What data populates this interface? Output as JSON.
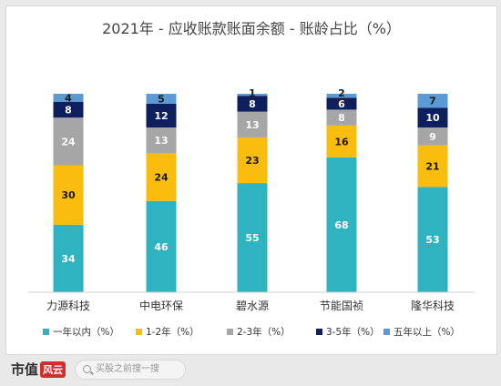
{
  "chart_data": {
    "type": "bar",
    "stacked": true,
    "title": "2021年 - 应收账款账面余额 - 账龄占比（%）",
    "categories": [
      "力源科技",
      "中电环保",
      "碧水源",
      "节能国祯",
      "隆华科技"
    ],
    "series": [
      {
        "name": "一年以内（%）",
        "color": "#2fb3c0",
        "values": [
          34,
          46,
          55,
          68,
          53
        ]
      },
      {
        "name": "1-2年（%）",
        "color": "#fbbd0d",
        "values": [
          30,
          24,
          23,
          16,
          21
        ]
      },
      {
        "name": "2-3年（%）",
        "color": "#a6a6a6",
        "values": [
          24,
          13,
          13,
          8,
          9
        ]
      },
      {
        "name": "3-5年（%）",
        "color": "#0d1f5c",
        "values": [
          8,
          12,
          8,
          6,
          10
        ]
      },
      {
        "name": "五年以上（%）",
        "color": "#5b9bd5",
        "values": [
          4,
          5,
          1,
          2,
          7
        ]
      }
    ],
    "ylim": [
      0,
      100
    ],
    "grid": false,
    "legend": "bottom"
  },
  "brand": {
    "logo": "市值",
    "logo_stamp": "风云",
    "search_placeholder": "买股之前搜一搜"
  }
}
